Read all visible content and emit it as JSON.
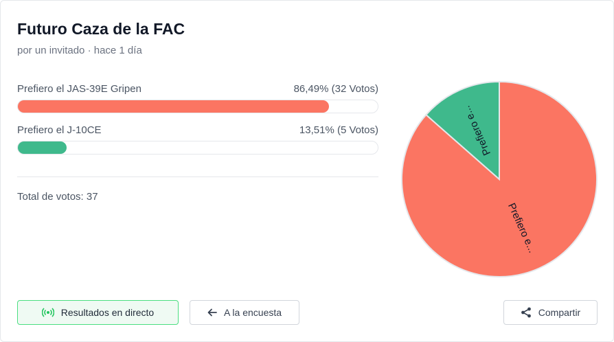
{
  "poll": {
    "title": "Futuro Caza de la FAC",
    "subtitle": "por un invitado · hace 1 día",
    "total_label": "Total de votos: 37"
  },
  "options": [
    {
      "label": "Prefiero el JAS-39E Gripen",
      "value_text": "86,49% (32 Votos)",
      "percent": 86.49,
      "votes": 32,
      "color": "#fb7562",
      "pie_label": "Prefiero e..."
    },
    {
      "label": "Prefiero el J-10CE",
      "value_text": "13,51% (5 Votos)",
      "percent": 13.51,
      "votes": 5,
      "color": "#3fb98c",
      "pie_label": "Prefiero e..."
    }
  ],
  "buttons": {
    "live": "Resultados en directo",
    "back": "A la encuesta",
    "share": "Compartir"
  },
  "icons": {
    "live": "broadcast-icon",
    "back": "arrow-left-icon",
    "share": "share-icon"
  },
  "chart_data": {
    "type": "pie",
    "categories": [
      "Prefiero e...",
      "Prefiero e..."
    ],
    "values": [
      32,
      5
    ]
  }
}
